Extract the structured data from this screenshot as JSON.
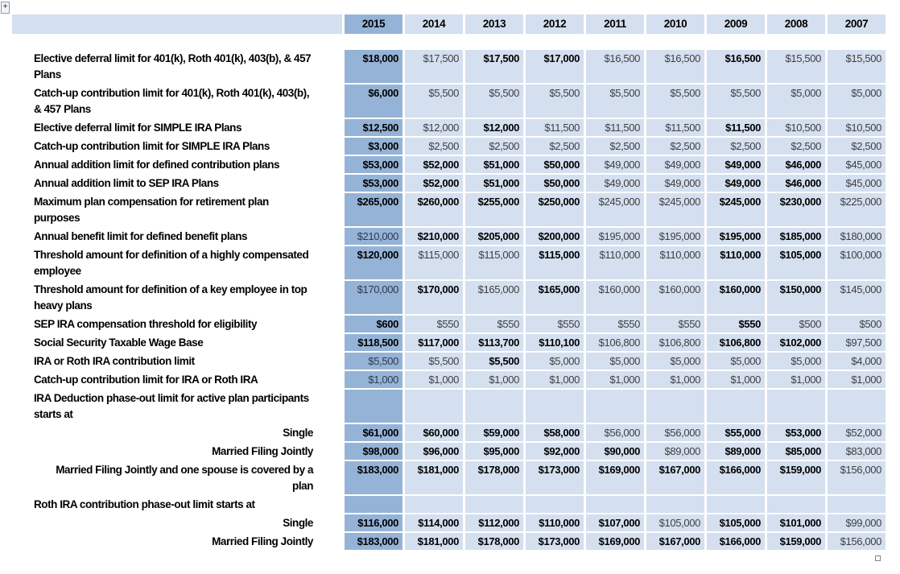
{
  "colors": {
    "highlight": "#95B3D7",
    "band": "#D4DFEF",
    "grid": "#FFFFFF"
  },
  "artifacts": {
    "expand_control": "+"
  },
  "table": {
    "years": [
      "2015",
      "2014",
      "2013",
      "2012",
      "2011",
      "2010",
      "2009",
      "2008",
      "2007"
    ],
    "highlight_year": "2015",
    "rows": [
      {
        "label": "Elective deferral limit for 401(k), Roth 401(k), 403(b), & 457 Plans",
        "align": "left",
        "values": [
          "$18,000",
          "$17,500",
          "$17,500",
          "$17,000",
          "$16,500",
          "$16,500",
          "$16,500",
          "$15,500",
          "$15,500"
        ],
        "bold": [
          1,
          0,
          1,
          1,
          0,
          0,
          1,
          0,
          0
        ]
      },
      {
        "label": "Catch-up contribution limit for 401(k), Roth 401(k), 403(b), & 457 Plans",
        "align": "left",
        "values": [
          "$6,000",
          "$5,500",
          "$5,500",
          "$5,500",
          "$5,500",
          "$5,500",
          "$5,500",
          "$5,000",
          "$5,000"
        ],
        "bold": [
          1,
          0,
          0,
          0,
          0,
          0,
          0,
          0,
          0
        ]
      },
      {
        "label": "Elective deferral limit for SIMPLE IRA Plans",
        "align": "left",
        "values": [
          "$12,500",
          "$12,000",
          "$12,000",
          "$11,500",
          "$11,500",
          "$11,500",
          "$11,500",
          "$10,500",
          "$10,500"
        ],
        "bold": [
          1,
          0,
          1,
          0,
          0,
          0,
          1,
          0,
          0
        ]
      },
      {
        "label": "Catch-up contribution limit for SIMPLE IRA Plans",
        "align": "left",
        "values": [
          "$3,000",
          "$2,500",
          "$2,500",
          "$2,500",
          "$2,500",
          "$2,500",
          "$2,500",
          "$2,500",
          "$2,500"
        ],
        "bold": [
          1,
          0,
          0,
          0,
          0,
          0,
          0,
          0,
          0
        ]
      },
      {
        "label": "Annual addition limit for defined contribution plans",
        "align": "left",
        "values": [
          "$53,000",
          "$52,000",
          "$51,000",
          "$50,000",
          "$49,000",
          "$49,000",
          "$49,000",
          "$46,000",
          "$45,000"
        ],
        "bold": [
          1,
          1,
          1,
          1,
          0,
          0,
          1,
          1,
          0
        ]
      },
      {
        "label": "Annual addition limit to SEP IRA Plans",
        "align": "left",
        "values": [
          "$53,000",
          "$52,000",
          "$51,000",
          "$50,000",
          "$49,000",
          "$49,000",
          "$49,000",
          "$46,000",
          "$45,000"
        ],
        "bold": [
          1,
          1,
          1,
          1,
          0,
          0,
          1,
          1,
          0
        ]
      },
      {
        "label": "Maximum plan compensation for retirement plan purposes",
        "align": "left",
        "values": [
          "$265,000",
          "$260,000",
          "$255,000",
          "$250,000",
          "$245,000",
          "$245,000",
          "$245,000",
          "$230,000",
          "$225,000"
        ],
        "bold": [
          1,
          1,
          1,
          1,
          0,
          0,
          1,
          1,
          0
        ]
      },
      {
        "label": "Annual benefit limit for defined benefit plans",
        "align": "left",
        "values": [
          "$210,000",
          "$210,000",
          "$205,000",
          "$200,000",
          "$195,000",
          "$195,000",
          "$195,000",
          "$185,000",
          "$180,000"
        ],
        "bold": [
          0,
          1,
          1,
          1,
          0,
          0,
          1,
          1,
          0
        ]
      },
      {
        "label": "Threshold amount for definition of a highly compensated employee",
        "align": "left",
        "values": [
          "$120,000",
          "$115,000",
          "$115,000",
          "$115,000",
          "$110,000",
          "$110,000",
          "$110,000",
          "$105,000",
          "$100,000"
        ],
        "bold": [
          1,
          0,
          0,
          1,
          0,
          0,
          1,
          1,
          0
        ]
      },
      {
        "label": "Threshold amount for definition of a key employee in top heavy plans",
        "align": "left",
        "values": [
          "$170,000",
          "$170,000",
          "$165,000",
          "$165,000",
          "$160,000",
          "$160,000",
          "$160,000",
          "$150,000",
          "$145,000"
        ],
        "bold": [
          0,
          1,
          0,
          1,
          0,
          0,
          1,
          1,
          0
        ]
      },
      {
        "label": "SEP IRA compensation threshold for eligibility",
        "align": "left",
        "values": [
          "$600",
          "$550",
          "$550",
          "$550",
          "$550",
          "$550",
          "$550",
          "$500",
          "$500"
        ],
        "bold": [
          1,
          0,
          0,
          0,
          0,
          0,
          1,
          0,
          0
        ]
      },
      {
        "label": "Social Security Taxable Wage Base",
        "align": "left",
        "values": [
          "$118,500",
          "$117,000",
          "$113,700",
          "$110,100",
          "$106,800",
          "$106,800",
          "$106,800",
          "$102,000",
          "$97,500"
        ],
        "bold": [
          1,
          1,
          1,
          1,
          0,
          0,
          1,
          1,
          0
        ]
      },
      {
        "label": "IRA or Roth IRA contribution limit",
        "align": "left",
        "values": [
          "$5,500",
          "$5,500",
          "$5,500",
          "$5,000",
          "$5,000",
          "$5,000",
          "$5,000",
          "$5,000",
          "$4,000"
        ],
        "bold": [
          0,
          0,
          1,
          0,
          0,
          0,
          0,
          0,
          0
        ]
      },
      {
        "label": "Catch-up contribution limit for IRA or Roth IRA",
        "align": "left",
        "values": [
          "$1,000",
          "$1,000",
          "$1,000",
          "$1,000",
          "$1,000",
          "$1,000",
          "$1,000",
          "$1,000",
          "$1,000"
        ],
        "bold": [
          0,
          0,
          0,
          0,
          0,
          0,
          0,
          0,
          0
        ]
      },
      {
        "label": "IRA Deduction phase-out limit for active plan participants starts at",
        "align": "left",
        "values": [
          "",
          "",
          "",
          "",
          "",
          "",
          "",
          "",
          ""
        ],
        "bold": [
          0,
          0,
          0,
          0,
          0,
          0,
          0,
          0,
          0
        ]
      },
      {
        "label": "Single",
        "align": "right",
        "values": [
          "$61,000",
          "$60,000",
          "$59,000",
          "$58,000",
          "$56,000",
          "$56,000",
          "$55,000",
          "$53,000",
          "$52,000"
        ],
        "bold": [
          1,
          1,
          1,
          1,
          0,
          0,
          1,
          1,
          0
        ]
      },
      {
        "label": "Married Filing Jointly",
        "align": "right",
        "values": [
          "$98,000",
          "$96,000",
          "$95,000",
          "$92,000",
          "$90,000",
          "$89,000",
          "$89,000",
          "$85,000",
          "$83,000"
        ],
        "bold": [
          1,
          1,
          1,
          1,
          1,
          0,
          1,
          1,
          0
        ]
      },
      {
        "label": "Married Filing Jointly and one spouse is covered by a plan",
        "align": "right",
        "values": [
          "$183,000",
          "$181,000",
          "$178,000",
          "$173,000",
          "$169,000",
          "$167,000",
          "$166,000",
          "$159,000",
          "$156,000"
        ],
        "bold": [
          1,
          1,
          1,
          1,
          1,
          1,
          1,
          1,
          0
        ]
      },
      {
        "label": "Roth IRA contribution phase-out limit starts at",
        "align": "left",
        "values": [
          "",
          "",
          "",
          "",
          "",
          "",
          "",
          "",
          ""
        ],
        "bold": [
          0,
          0,
          0,
          0,
          0,
          0,
          0,
          0,
          0
        ]
      },
      {
        "label": "Single",
        "align": "right",
        "values": [
          "$116,000",
          "$114,000",
          "$112,000",
          "$110,000",
          "$107,000",
          "$105,000",
          "$105,000",
          "$101,000",
          "$99,000"
        ],
        "bold": [
          1,
          1,
          1,
          1,
          1,
          0,
          1,
          1,
          0
        ]
      },
      {
        "label": "Married Filing Jointly",
        "align": "right",
        "values": [
          "$183,000",
          "$181,000",
          "$178,000",
          "$173,000",
          "$169,000",
          "$167,000",
          "$166,000",
          "$159,000",
          "$156,000"
        ],
        "bold": [
          1,
          1,
          1,
          1,
          1,
          1,
          1,
          1,
          0
        ]
      }
    ]
  }
}
